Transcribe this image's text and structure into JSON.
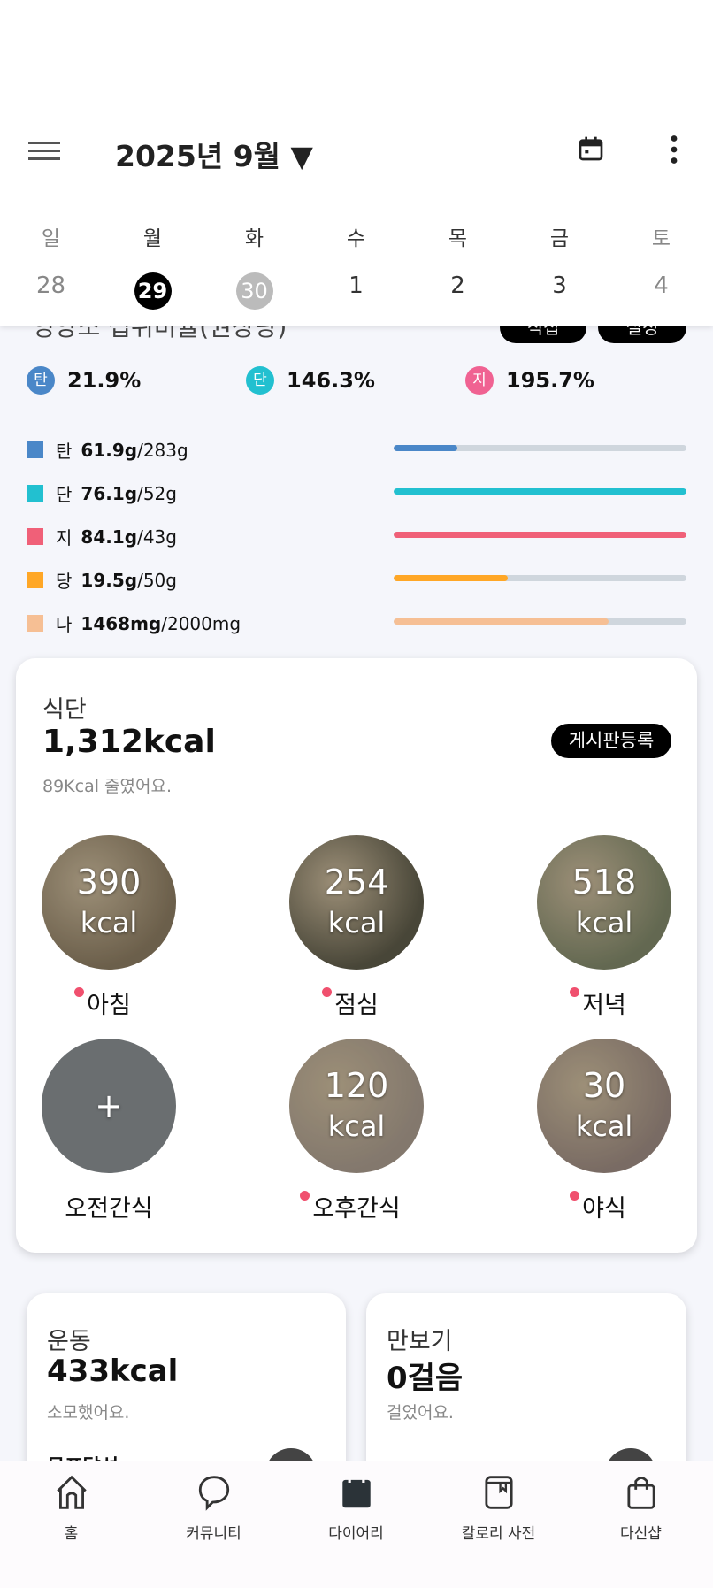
{
  "header": {
    "title": "2025년 9월 ▼",
    "menu_icon": "hamburger-icon",
    "calendar_icon": "calendar-icon",
    "more_icon": "more-vertical-icon"
  },
  "week": {
    "days": [
      "일",
      "월",
      "화",
      "수",
      "목",
      "금",
      "토"
    ],
    "dates": [
      "28",
      "29",
      "30",
      "1",
      "2",
      "3",
      "4"
    ],
    "selected": "29",
    "today": "30"
  },
  "nutrition": {
    "section_title": "영양소 섭취비율(권장량)",
    "buttons": [
      "직접",
      "설정"
    ],
    "ratios": [
      {
        "badge": "탄",
        "value": "21.9%",
        "color": "#4a87c8"
      },
      {
        "badge": "단",
        "value": "146.3%",
        "color": "#22c0d0"
      },
      {
        "badge": "지",
        "value": "195.7%",
        "color": "#f06292"
      }
    ],
    "items": [
      {
        "key": "탄",
        "amount": "61.9g",
        "target": "/283g",
        "fill": 21.9,
        "color": "#4a87c8"
      },
      {
        "key": "단",
        "amount": "76.1g",
        "target": "/52g",
        "fill": 100,
        "color": "#22c0d0"
      },
      {
        "key": "지",
        "amount": "84.1g",
        "target": "/43g",
        "fill": 100,
        "color": "#f06078"
      },
      {
        "key": "당",
        "amount": "19.5g",
        "target": "/50g",
        "fill": 39,
        "color": "#ffa726"
      },
      {
        "key": "나",
        "amount": "1468mg",
        "target": "/2000mg",
        "fill": 73.4,
        "color": "#f6bf94"
      }
    ]
  },
  "meal": {
    "title": "식단",
    "kcal": "1,312kcal",
    "subtitle": "89Kcal 줄였어요.",
    "post_button": "게시판등록",
    "meals": [
      {
        "label": "아침",
        "value": "390",
        "unit": "kcal",
        "dot": true,
        "bg": "#8a7a60"
      },
      {
        "label": "점심",
        "value": "254",
        "unit": "kcal",
        "dot": true,
        "bg": "#5d5a48"
      },
      {
        "label": "저녁",
        "value": "518",
        "unit": "kcal",
        "dot": true,
        "bg": "#7f8668"
      },
      {
        "label": "오전간식",
        "value": "+",
        "unit": "",
        "dot": false,
        "bg": "#6a6e70"
      },
      {
        "label": "오후간식",
        "value": "120",
        "unit": "kcal",
        "dot": true,
        "bg": "#a89a8c"
      },
      {
        "label": "야식",
        "value": "30",
        "unit": "kcal",
        "dot": true,
        "bg": "#9c8a80"
      }
    ]
  },
  "exercise": {
    "title": "운동",
    "value": "433kcal",
    "subtitle": "소모했어요.",
    "extra": "목표달성"
  },
  "steps": {
    "title": "만보기",
    "value": "0걸음",
    "subtitle": "걸었어요."
  },
  "nav": [
    {
      "label": "홈",
      "icon": "home-icon"
    },
    {
      "label": "커뮤니티",
      "icon": "chat-bubble-icon"
    },
    {
      "label": "다이어리",
      "icon": "calendar-icon"
    },
    {
      "label": "칼로리 사전",
      "icon": "book-icon"
    },
    {
      "label": "다신샵",
      "icon": "shopping-bag-icon"
    }
  ]
}
